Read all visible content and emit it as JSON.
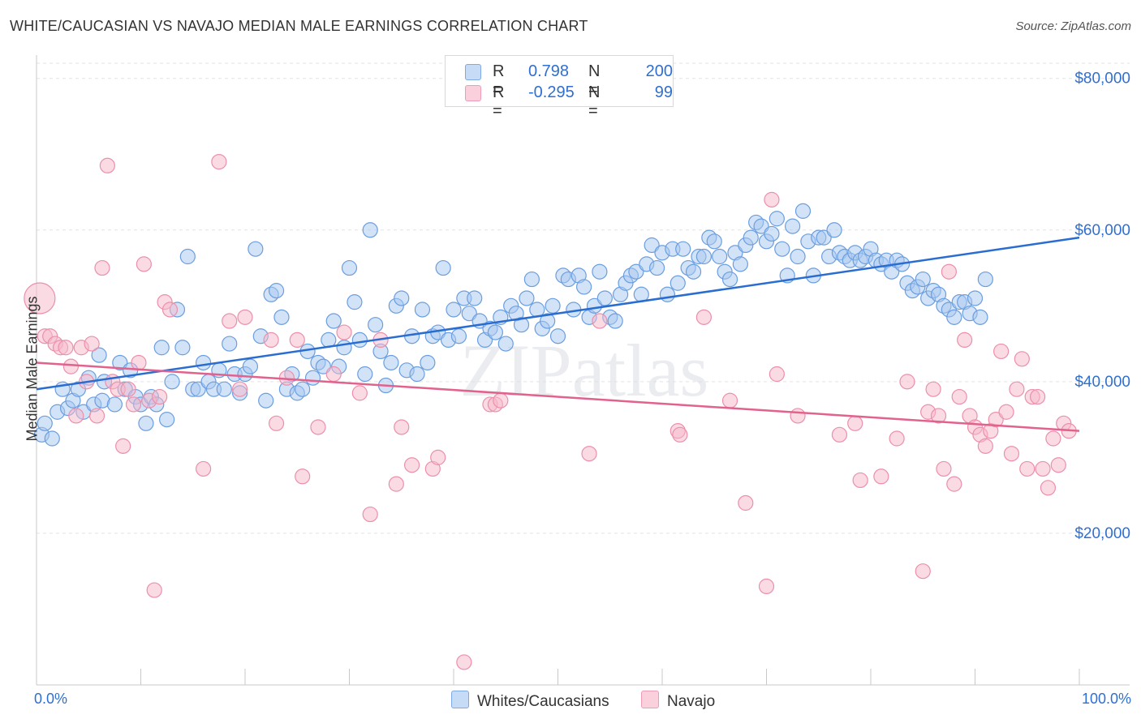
{
  "title": "WHITE/CAUCASIAN VS NAVAJO MEDIAN MALE EARNINGS CORRELATION CHART",
  "source": "Source: ZipAtlas.com",
  "watermark": "ZIPatlas",
  "legend": {
    "rows": [
      {
        "r_label": "R =",
        "r_value": "0.798",
        "n_label": "N =",
        "n_value": "200",
        "color": "#a8c8f0"
      },
      {
        "r_label": "R =",
        "r_value": "-0.295",
        "n_label": "N =",
        "n_value": "99",
        "color": "#f6b8ca"
      }
    ]
  },
  "bottom_legend": [
    {
      "label": "Whites/Caucasians",
      "color": "#a8c8f0"
    },
    {
      "label": "Navajo",
      "color": "#f6b8ca"
    }
  ],
  "chart_data": {
    "type": "scatter",
    "title": "WHITE/CAUCASIAN VS NAVAJO MEDIAN MALE EARNINGS CORRELATION CHART",
    "xlabel": "",
    "ylabel": "Median Male Earnings",
    "x_tick_labels": [
      "0.0%",
      "100.0%"
    ],
    "y_ticks": [
      {
        "value": 20000,
        "label": "$20,000"
      },
      {
        "value": 40000,
        "label": "$40,000"
      },
      {
        "value": 60000,
        "label": "$60,000"
      },
      {
        "value": 80000,
        "label": "$80,000"
      }
    ],
    "xlim": [
      0,
      100
    ],
    "ylim": [
      0,
      82000
    ],
    "grid": true,
    "series": [
      {
        "name": "Whites/Caucasians",
        "color": "#a8c8f0",
        "stroke": "#6a9ee0",
        "trend_color": "#2a6dd0",
        "trend": {
          "x": [
            0,
            100
          ],
          "y": [
            39000,
            59000
          ]
        },
        "points": [
          [
            0.5,
            33000
          ],
          [
            1.5,
            32500
          ],
          [
            0.8,
            34500
          ],
          [
            2,
            36000
          ],
          [
            2.5,
            39000
          ],
          [
            3,
            36500
          ],
          [
            3.5,
            37500
          ],
          [
            4,
            39000
          ],
          [
            4.5,
            36000
          ],
          [
            5,
            40500
          ],
          [
            5.5,
            37000
          ],
          [
            6,
            43500
          ],
          [
            6.3,
            37500
          ],
          [
            6.5,
            40000
          ],
          [
            7.5,
            37000
          ],
          [
            8,
            42500
          ],
          [
            8.5,
            39000
          ],
          [
            9,
            41500
          ],
          [
            9.5,
            38000
          ],
          [
            10,
            37000
          ],
          [
            10.5,
            34500
          ],
          [
            11,
            38000
          ],
          [
            11.5,
            37000
          ],
          [
            12,
            44500
          ],
          [
            12.5,
            35000
          ],
          [
            13,
            40000
          ],
          [
            13.5,
            49500
          ],
          [
            14,
            44500
          ],
          [
            14.5,
            56500
          ],
          [
            15,
            39000
          ],
          [
            15.5,
            39000
          ],
          [
            16,
            42500
          ],
          [
            16.5,
            40000
          ],
          [
            17,
            39000
          ],
          [
            17.5,
            41500
          ],
          [
            18,
            39000
          ],
          [
            18.5,
            45000
          ],
          [
            19,
            41000
          ],
          [
            19.5,
            38500
          ],
          [
            20,
            41000
          ],
          [
            20.5,
            42000
          ],
          [
            21,
            57500
          ],
          [
            21.5,
            46000
          ],
          [
            22,
            37500
          ],
          [
            22.5,
            51500
          ],
          [
            23,
            52000
          ],
          [
            23.5,
            48500
          ],
          [
            24,
            39000
          ],
          [
            24.5,
            41000
          ],
          [
            25,
            38500
          ],
          [
            25.5,
            39000
          ],
          [
            26,
            44000
          ],
          [
            26.5,
            40500
          ],
          [
            27,
            42500
          ],
          [
            27.5,
            42000
          ],
          [
            28,
            45500
          ],
          [
            28.5,
            48000
          ],
          [
            29,
            42000
          ],
          [
            29.5,
            44500
          ],
          [
            30,
            55000
          ],
          [
            30.5,
            50500
          ],
          [
            31,
            45500
          ],
          [
            31.5,
            41000
          ],
          [
            32,
            60000
          ],
          [
            32.5,
            47500
          ],
          [
            33,
            44000
          ],
          [
            33.5,
            39500
          ],
          [
            34,
            42500
          ],
          [
            34.5,
            50000
          ],
          [
            35,
            51000
          ],
          [
            35.5,
            41500
          ],
          [
            36,
            46000
          ],
          [
            36.5,
            41000
          ],
          [
            37,
            49500
          ],
          [
            37.5,
            42500
          ],
          [
            38,
            46000
          ],
          [
            38.5,
            46500
          ],
          [
            39,
            55000
          ],
          [
            39.5,
            45500
          ],
          [
            40,
            49500
          ],
          [
            40.5,
            46000
          ],
          [
            41,
            51000
          ],
          [
            41.5,
            49000
          ],
          [
            42,
            51000
          ],
          [
            42.5,
            48000
          ],
          [
            43,
            45500
          ],
          [
            43.5,
            47000
          ],
          [
            44,
            46500
          ],
          [
            44.5,
            48500
          ],
          [
            45,
            45000
          ],
          [
            45.5,
            50000
          ],
          [
            46,
            49000
          ],
          [
            46.5,
            47500
          ],
          [
            47,
            51000
          ],
          [
            47.5,
            53500
          ],
          [
            48,
            49500
          ],
          [
            48.5,
            47000
          ],
          [
            49,
            48000
          ],
          [
            49.5,
            50000
          ],
          [
            50,
            46000
          ],
          [
            50.5,
            54000
          ],
          [
            51,
            53500
          ],
          [
            51.5,
            49500
          ],
          [
            52,
            54000
          ],
          [
            52.5,
            52500
          ],
          [
            53,
            48500
          ],
          [
            53.5,
            50000
          ],
          [
            54,
            54500
          ],
          [
            54.5,
            51000
          ],
          [
            55,
            48500
          ],
          [
            55.5,
            48000
          ],
          [
            56,
            51500
          ],
          [
            56.5,
            53000
          ],
          [
            57,
            54000
          ],
          [
            57.5,
            54500
          ],
          [
            58,
            51500
          ],
          [
            58.5,
            55500
          ],
          [
            59,
            58000
          ],
          [
            59.5,
            55000
          ],
          [
            60,
            57000
          ],
          [
            60.5,
            51500
          ],
          [
            61,
            57500
          ],
          [
            61.5,
            53000
          ],
          [
            62,
            57500
          ],
          [
            62.5,
            55000
          ],
          [
            63,
            54500
          ],
          [
            63.5,
            56500
          ],
          [
            64,
            56500
          ],
          [
            64.5,
            59000
          ],
          [
            65,
            58500
          ],
          [
            65.5,
            56500
          ],
          [
            66,
            54500
          ],
          [
            66.5,
            53500
          ],
          [
            67,
            57000
          ],
          [
            67.5,
            55500
          ],
          [
            68,
            58000
          ],
          [
            68.5,
            59000
          ],
          [
            69,
            61000
          ],
          [
            69.5,
            60500
          ],
          [
            70,
            58500
          ],
          [
            70.5,
            59500
          ],
          [
            71,
            61500
          ],
          [
            71.5,
            57500
          ],
          [
            72,
            54000
          ],
          [
            72.5,
            60500
          ],
          [
            73,
            56500
          ],
          [
            73.5,
            62500
          ],
          [
            74,
            58500
          ],
          [
            74.5,
            54000
          ],
          [
            75,
            59000
          ],
          [
            75.5,
            59000
          ],
          [
            76,
            56500
          ],
          [
            76.5,
            60000
          ],
          [
            77,
            57000
          ],
          [
            77.5,
            56500
          ],
          [
            78,
            56000
          ],
          [
            78.5,
            57000
          ],
          [
            79,
            56000
          ],
          [
            79.5,
            56500
          ],
          [
            80,
            57500
          ],
          [
            80.5,
            56000
          ],
          [
            81,
            55500
          ],
          [
            81.5,
            56000
          ],
          [
            82,
            54500
          ],
          [
            82.5,
            56000
          ],
          [
            83,
            55500
          ],
          [
            83.5,
            53000
          ],
          [
            84,
            52000
          ],
          [
            84.5,
            52500
          ],
          [
            85,
            53500
          ],
          [
            85.5,
            51000
          ],
          [
            86,
            52000
          ],
          [
            86.5,
            51500
          ],
          [
            87,
            50000
          ],
          [
            87.5,
            49500
          ],
          [
            88,
            48500
          ],
          [
            88.5,
            50500
          ],
          [
            89,
            50500
          ],
          [
            89.5,
            49000
          ],
          [
            90,
            51000
          ],
          [
            90.5,
            48500
          ],
          [
            91,
            53500
          ]
        ]
      },
      {
        "name": "Navajo",
        "color": "#f6b8ca",
        "stroke": "#ec8fab",
        "trend_color": "#e2628e",
        "trend": {
          "x": [
            0,
            100
          ],
          "y": [
            42500,
            33500
          ]
        },
        "points": [
          [
            0.3,
            51000
          ],
          [
            0.8,
            46000
          ],
          [
            1.3,
            46000
          ],
          [
            1.8,
            45000
          ],
          [
            2.3,
            44500
          ],
          [
            2.8,
            44500
          ],
          [
            3.3,
            42000
          ],
          [
            3.8,
            35500
          ],
          [
            4.3,
            44500
          ],
          [
            4.8,
            40000
          ],
          [
            5.3,
            45000
          ],
          [
            5.8,
            35500
          ],
          [
            6.3,
            55000
          ],
          [
            6.8,
            68500
          ],
          [
            7.3,
            40000
          ],
          [
            7.8,
            39000
          ],
          [
            8.3,
            31500
          ],
          [
            8.8,
            39000
          ],
          [
            9.3,
            37000
          ],
          [
            9.8,
            42500
          ],
          [
            10.3,
            55500
          ],
          [
            10.8,
            37500
          ],
          [
            11.3,
            12500
          ],
          [
            11.8,
            38000
          ],
          [
            12.3,
            50500
          ],
          [
            12.8,
            49500
          ],
          [
            17.5,
            69000
          ],
          [
            16,
            28500
          ],
          [
            18.5,
            48000
          ],
          [
            19.5,
            39000
          ],
          [
            20,
            48500
          ],
          [
            22.5,
            45500
          ],
          [
            23,
            34500
          ],
          [
            24,
            40500
          ],
          [
            25,
            45500
          ],
          [
            25.5,
            27500
          ],
          [
            27,
            34000
          ],
          [
            28.5,
            41000
          ],
          [
            29.5,
            46500
          ],
          [
            31,
            38500
          ],
          [
            32,
            22500
          ],
          [
            33,
            45500
          ],
          [
            34.5,
            26500
          ],
          [
            35,
            34000
          ],
          [
            36,
            29000
          ],
          [
            38,
            28500
          ],
          [
            38.5,
            30000
          ],
          [
            41,
            3000
          ],
          [
            43.5,
            37000
          ],
          [
            44,
            37000
          ],
          [
            44.5,
            37500
          ],
          [
            53,
            30500
          ],
          [
            54,
            48000
          ],
          [
            61.5,
            33500
          ],
          [
            61.7,
            33000
          ],
          [
            64,
            48500
          ],
          [
            66.5,
            37500
          ],
          [
            68,
            24000
          ],
          [
            70,
            13000
          ],
          [
            70.5,
            64000
          ],
          [
            71,
            41000
          ],
          [
            73,
            35500
          ],
          [
            77,
            33000
          ],
          [
            78.5,
            34500
          ],
          [
            79,
            27000
          ],
          [
            81,
            27500
          ],
          [
            82.5,
            32500
          ],
          [
            83.5,
            40000
          ],
          [
            85,
            15000
          ],
          [
            85.5,
            36000
          ],
          [
            86,
            39000
          ],
          [
            86.5,
            35500
          ],
          [
            87,
            28500
          ],
          [
            87.5,
            54500
          ],
          [
            88,
            26500
          ],
          [
            88.5,
            38000
          ],
          [
            89,
            45500
          ],
          [
            89.5,
            35500
          ],
          [
            90,
            34000
          ],
          [
            90.5,
            33000
          ],
          [
            91,
            31500
          ],
          [
            91.5,
            33500
          ],
          [
            92,
            35000
          ],
          [
            92.5,
            44000
          ],
          [
            93,
            36000
          ],
          [
            93.5,
            30500
          ],
          [
            94,
            39000
          ],
          [
            94.5,
            43000
          ],
          [
            95,
            28500
          ],
          [
            95.5,
            38000
          ],
          [
            96,
            38000
          ],
          [
            96.5,
            28500
          ],
          [
            97,
            26000
          ],
          [
            97.5,
            32500
          ],
          [
            98,
            29000
          ],
          [
            98.5,
            34500
          ],
          [
            99,
            33500
          ]
        ]
      }
    ]
  }
}
